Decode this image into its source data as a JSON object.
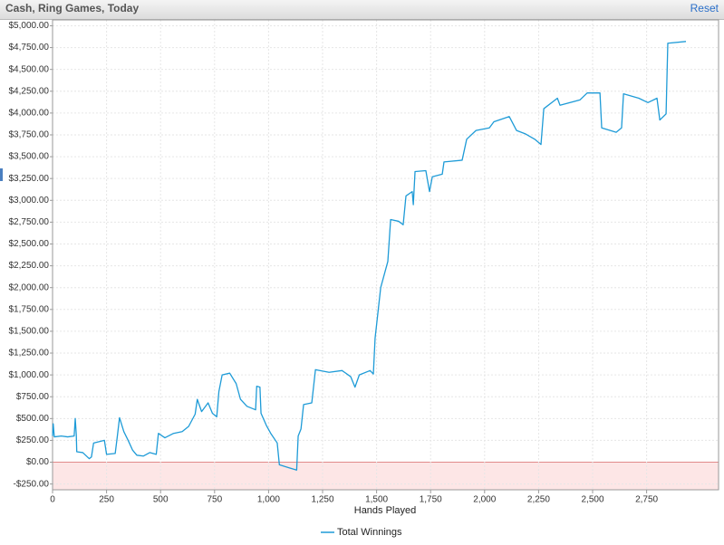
{
  "header": {
    "title": "Cash, Ring Games, Today",
    "action": "Reset"
  },
  "chart_data": {
    "type": "line",
    "x_label": "Hands Played",
    "x": [
      0,
      3,
      8,
      40,
      70,
      100,
      105,
      110,
      112,
      140,
      170,
      180,
      190,
      240,
      250,
      290,
      300,
      310,
      330,
      350,
      370,
      390,
      420,
      450,
      480,
      490,
      520,
      560,
      600,
      630,
      660,
      670,
      690,
      720,
      740,
      760,
      770,
      785,
      820,
      850,
      870,
      900,
      940,
      945,
      960,
      965,
      990,
      1010,
      1040,
      1050,
      1090,
      1130,
      1137,
      1150,
      1162,
      1200,
      1217,
      1280,
      1340,
      1380,
      1400,
      1420,
      1470,
      1485,
      1493,
      1519,
      1552,
      1565,
      1602,
      1623,
      1636,
      1665,
      1670,
      1678,
      1728,
      1745,
      1758,
      1804,
      1812,
      1896,
      1917,
      1960,
      2022,
      2043,
      2114,
      2148,
      2190,
      2232,
      2261,
      2274,
      2337,
      2349,
      2441,
      2475,
      2534,
      2542,
      2609,
      2634,
      2643,
      2714,
      2756,
      2798,
      2811,
      2840,
      2848,
      2932
    ],
    "series": [
      {
        "name": "Total Winnings",
        "color": "#1e9bd7",
        "values": [
          300,
          440,
          290,
          300,
          290,
          300,
          500,
          310,
          120,
          110,
          40,
          60,
          220,
          250,
          90,
          100,
          300,
          510,
          350,
          250,
          140,
          80,
          70,
          110,
          90,
          330,
          280,
          330,
          350,
          410,
          550,
          720,
          580,
          680,
          560,
          520,
          810,
          1000,
          1020,
          900,
          720,
          640,
          600,
          870,
          860,
          560,
          420,
          330,
          220,
          -30,
          -60,
          -90,
          300,
          380,
          660,
          680,
          1060,
          1030,
          1050,
          980,
          860,
          1000,
          1050,
          1010,
          1420,
          2000,
          2300,
          2780,
          2760,
          2720,
          3050,
          3100,
          2950,
          3330,
          3340,
          3100,
          3270,
          3300,
          3440,
          3460,
          3700,
          3800,
          3830,
          3900,
          3960,
          3800,
          3760,
          3700,
          3640,
          4050,
          4170,
          4090,
          4150,
          4230,
          4230,
          3830,
          3780,
          3830,
          4220,
          4170,
          4120,
          4170,
          3920,
          3990,
          4800,
          4820
        ]
      }
    ],
    "xlim": [
      0,
      3083
    ],
    "xticks": [
      0,
      250,
      500,
      750,
      {
        "value": 1000,
        "label": "1,000"
      },
      {
        "value": 1250,
        "label": "1,250"
      },
      {
        "value": 1500,
        "label": "1,500"
      },
      {
        "value": 1750,
        "label": "1,750"
      },
      {
        "value": 2000,
        "label": "2,000"
      },
      {
        "value": 2250,
        "label": "2,250"
      },
      {
        "value": 2500,
        "label": "2,500"
      },
      {
        "value": 2750,
        "label": "2,750"
      }
    ],
    "ylim": [
      -316,
      5067
    ],
    "yticks": [
      {
        "value": -250,
        "label": "-$250.00"
      },
      {
        "value": 0,
        "label": "$0.00"
      },
      {
        "value": 250,
        "label": "$250.00"
      },
      {
        "value": 500,
        "label": "$500.00"
      },
      {
        "value": 750,
        "label": "$750.00"
      },
      {
        "value": 1000,
        "label": "$1,000.00"
      },
      {
        "value": 1250,
        "label": "$1,250.00"
      },
      {
        "value": 1500,
        "label": "$1,500.00"
      },
      {
        "value": 1750,
        "label": "$1,750.00"
      },
      {
        "value": 2000,
        "label": "$2,000.00"
      },
      {
        "value": 2250,
        "label": "$2,250.00"
      },
      {
        "value": 2500,
        "label": "$2,500.00"
      },
      {
        "value": 2750,
        "label": "$2,750.00"
      },
      {
        "value": 3000,
        "label": "$3,000.00"
      },
      {
        "value": 3250,
        "label": "$3,250.00"
      },
      {
        "value": 3500,
        "label": "$3,500.00"
      },
      {
        "value": 3750,
        "label": "$3,750.00"
      },
      {
        "value": 4000,
        "label": "$4,000.00"
      },
      {
        "value": 4250,
        "label": "$4,250.00"
      },
      {
        "value": 4500,
        "label": "$4,500.00"
      },
      {
        "value": 4750,
        "label": "$4,750.00"
      },
      {
        "value": 5000,
        "label": "$5,000.00"
      }
    ],
    "grid": true,
    "negative_fill": "#fde6e6",
    "zero_line_color": "#e08a8a",
    "legend": "bottom"
  }
}
